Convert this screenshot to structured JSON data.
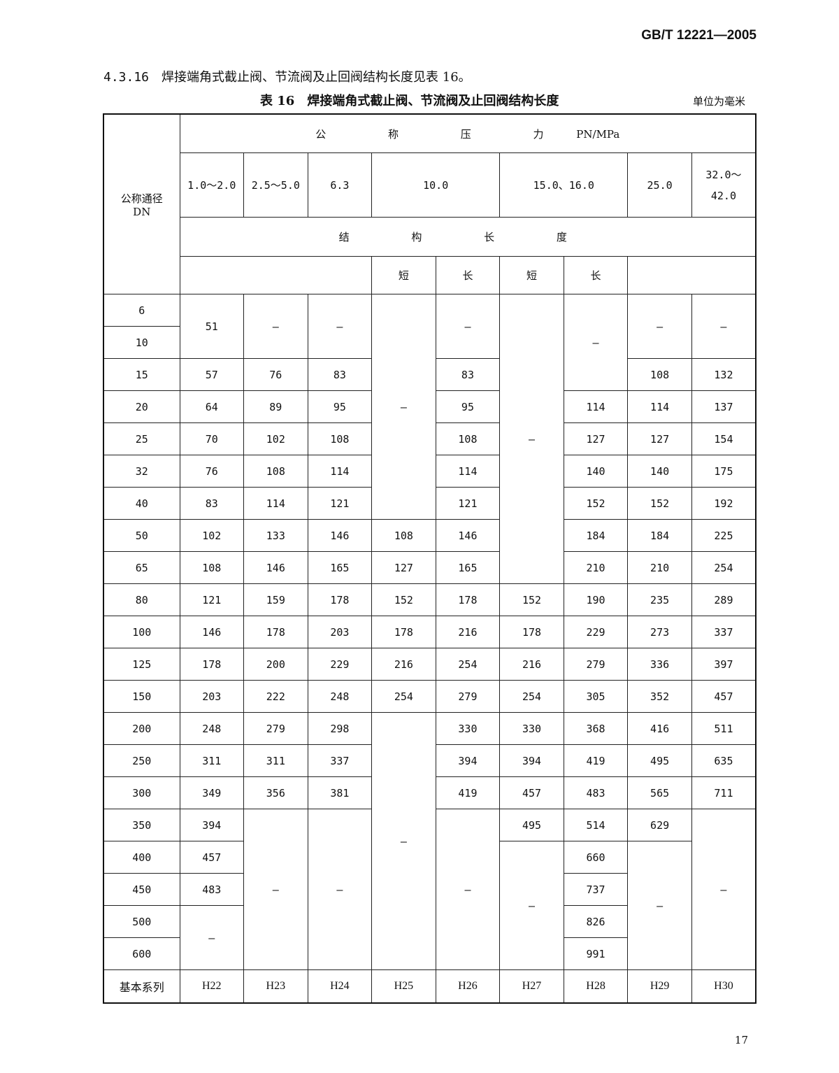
{
  "header": {
    "standard_code": "GB/T 12221—2005"
  },
  "clause": {
    "number": "4.3.16",
    "text": "焊接端角式截止阀、节流阀及止回阀结构长度见表 16。"
  },
  "table": {
    "caption_number": "表 16",
    "caption_title": "焊接端角式截止阀、节流阀及止回阀结构长度",
    "unit": "单位为毫米",
    "dn_header_line1": "公称通径",
    "dn_header_line2": "DN",
    "pressure_header": "公 称 压 力",
    "pressure_unit": "PN/MPa",
    "pressure_classes": [
      "1.0～2.0",
      "2.5～5.0",
      "6.3",
      "10.0",
      "15.0、16.0",
      "25.0",
      "32.0～42.0"
    ],
    "length_header": "结 构 长 度",
    "sub_headers": [
      "短",
      "长",
      "短",
      "长"
    ],
    "rows": [
      [
        "6",
        [
          "51",
          2
        ],
        [
          "—",
          2
        ],
        [
          "—",
          2
        ],
        [
          "—",
          7
        ],
        [
          "—",
          2
        ],
        [
          "—",
          9
        ],
        [
          "—",
          3
        ],
        [
          "—",
          2
        ],
        [
          "—",
          2
        ]
      ],
      [
        "10"
      ],
      [
        "15",
        "57",
        "76",
        "83",
        "83",
        "108",
        "132"
      ],
      [
        "20",
        "64",
        "89",
        "95",
        "95",
        "114",
        "114",
        "137"
      ],
      [
        "25",
        "70",
        "102",
        "108",
        "108",
        "127",
        "127",
        "154"
      ],
      [
        "32",
        "76",
        "108",
        "114",
        "114",
        "140",
        "140",
        "175"
      ],
      [
        "40",
        "83",
        "114",
        "121",
        "121",
        "152",
        "152",
        "192"
      ],
      [
        "50",
        "102",
        "133",
        "146",
        "108",
        "146",
        "184",
        "184",
        "225"
      ],
      [
        "65",
        "108",
        "146",
        "165",
        "127",
        "165",
        "210",
        "210",
        "254"
      ],
      [
        "80",
        "121",
        "159",
        "178",
        "152",
        "178",
        "152",
        "190",
        "235",
        "289"
      ],
      [
        "100",
        "146",
        "178",
        "203",
        "178",
        "216",
        "178",
        "229",
        "273",
        "337"
      ],
      [
        "125",
        "178",
        "200",
        "229",
        "216",
        "254",
        "216",
        "279",
        "336",
        "397"
      ],
      [
        "150",
        "203",
        "222",
        "248",
        "254",
        "279",
        "254",
        "305",
        "352",
        "457"
      ],
      [
        "200",
        "248",
        "279",
        "298",
        [
          "—",
          8
        ],
        "330",
        "330",
        "368",
        "416",
        "511"
      ],
      [
        "250",
        "311",
        "311",
        "337",
        "394",
        "394",
        "419",
        "495",
        "635"
      ],
      [
        "300",
        "349",
        "356",
        "381",
        "419",
        "457",
        "483",
        "565",
        "711"
      ],
      [
        "350",
        "394",
        [
          "—",
          5
        ],
        [
          "—",
          5
        ],
        [
          "—",
          5
        ],
        "495",
        "514",
        "629",
        [
          "—",
          5
        ]
      ],
      [
        "400",
        "457",
        [
          "—",
          4
        ],
        "660",
        [
          "—",
          4
        ]
      ],
      [
        "450",
        "483",
        "737"
      ],
      [
        "500",
        [
          "—",
          2
        ],
        "826"
      ],
      [
        "600",
        "991"
      ]
    ],
    "footer_label": "基本系列",
    "footer_series": [
      "H22",
      "H23",
      "H24",
      "H25",
      "H26",
      "H27",
      "H28",
      "H29",
      "H30"
    ]
  },
  "page_number": "17"
}
